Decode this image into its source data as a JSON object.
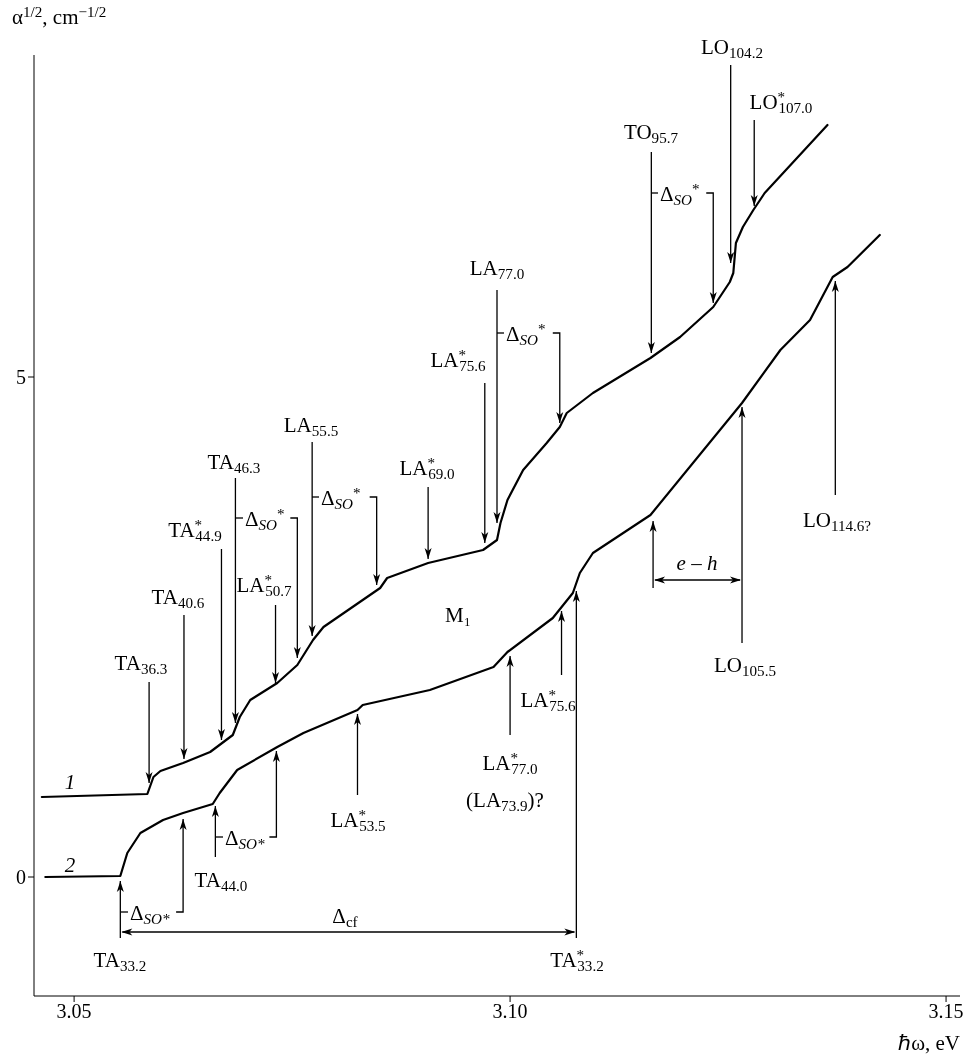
{
  "chart_data": {
    "type": "line",
    "xlabel": "ℏω, eV",
    "ylabel": "α$^{1/2}$, cm$^{−1/2}$",
    "xlim": [
      3.0454,
      3.1516
    ],
    "ylim": [
      -1.19,
      8.22
    ],
    "xticks": [
      3.05,
      {
        "value": 3.1,
        "label": "3.10"
      },
      3.15
    ],
    "yticks": [
      0,
      5
    ],
    "grid": false,
    "line_style": "solid",
    "series": [
      {
        "name": "1",
        "color": "#000000",
        "x": [
          3.0463,
          3.0584,
          3.0591,
          3.0599,
          3.0625,
          3.0656,
          3.0682,
          3.069,
          3.0702,
          3.0733,
          3.0756,
          3.0774,
          3.0786,
          3.0831,
          3.0851,
          3.0859,
          3.0906,
          3.0969,
          3.0985,
          3.0989,
          3.0997,
          3.1015,
          3.1042,
          3.1057,
          3.1065,
          3.1095,
          3.1161,
          3.1195,
          3.1233,
          3.1252,
          3.1256,
          3.1259,
          3.1267,
          3.1279,
          3.1292,
          3.1364
        ],
        "values": [
          0.8,
          0.83,
          1.0,
          1.06,
          1.14,
          1.25,
          1.42,
          1.6,
          1.77,
          1.94,
          2.12,
          2.37,
          2.5,
          2.77,
          2.89,
          2.99,
          3.14,
          3.27,
          3.37,
          3.54,
          3.77,
          4.07,
          4.34,
          4.5,
          4.64,
          4.84,
          5.19,
          5.4,
          5.7,
          5.95,
          6.04,
          6.34,
          6.5,
          6.67,
          6.84,
          7.52
        ]
      },
      {
        "name": "2",
        "color": "#000000",
        "x": [
          3.0467,
          3.0553,
          3.0561,
          3.0576,
          3.0602,
          3.0625,
          3.0659,
          3.0667,
          3.0687,
          3.0733,
          3.0763,
          3.0825,
          3.0831,
          3.0908,
          3.0981,
          3.0997,
          3.1049,
          3.1072,
          3.108,
          3.1095,
          3.1161,
          3.1266,
          3.131,
          3.1344,
          3.137,
          3.1387,
          3.1424
        ],
        "values": [
          0.0,
          0.01,
          0.24,
          0.44,
          0.57,
          0.64,
          0.73,
          0.84,
          1.07,
          1.3,
          1.44,
          1.67,
          1.72,
          1.87,
          2.1,
          2.25,
          2.59,
          2.84,
          3.04,
          3.24,
          3.62,
          4.74,
          5.27,
          5.57,
          6.0,
          6.1,
          6.42
        ]
      }
    ],
    "annotations": [
      {
        "text": "TA$_{36.3}$",
        "x": 3.0586,
        "y": 0.9
      },
      {
        "text": "TA$_{40.6}$",
        "x": 3.0626,
        "y": 1.14
      },
      {
        "text": "TA$^{*}$$_{44.9}$",
        "x": 3.0669,
        "y": 1.33
      },
      {
        "text": "TA$_{46.3}$",
        "x": 3.0685,
        "y": 1.5
      },
      {
        "text": "Δ$_{SO}$$^{*}$",
        "x": 3.0756,
        "y": 2.15
      },
      {
        "text": "LA$^{*}$$_{50.7}$",
        "x": 3.0731,
        "y": 1.9
      },
      {
        "text": "LA$_{55.5}$",
        "x": 3.0773,
        "y": 2.37
      },
      {
        "text": "Δ$_{SO}$$^{*}$",
        "x": 3.0847,
        "y": 2.88
      },
      {
        "text": "LA$^{*}$$_{69.0}$",
        "x": 3.0906,
        "y": 3.14
      },
      {
        "text": "LA$^{*}$$_{75.6}$",
        "x": 3.0971,
        "y": 3.3
      },
      {
        "text": "LA$_{77.0}$",
        "x": 3.0985,
        "y": 3.5
      },
      {
        "text": "Δ$_{SO}$$^{*}$",
        "x": 3.1057,
        "y": 4.5
      },
      {
        "text": "TO$_{95.7}$",
        "x": 3.1162,
        "y": 5.2
      },
      {
        "text": "Δ$_{SO}$$^{*}$",
        "x": 3.1233,
        "y": 5.7
      },
      {
        "text": "LO$_{104.2}$",
        "x": 3.1253,
        "y": 6.1
      },
      {
        "text": "LO$^{*}$$_{107.0}$",
        "x": 3.128,
        "y": 6.67
      },
      {
        "text": "LO$_{114.6?}$",
        "x": 3.1373,
        "y": 6.0
      },
      {
        "text": "LO$_{105.5}$",
        "x": 3.1266,
        "y": 4.74
      },
      {
        "text": "e – h",
        "x": 3.1164,
        "y": 3.6
      },
      {
        "text": "LA$^{*}$$_{75.6}$",
        "x": 3.1059,
        "y": 2.7
      },
      {
        "text": "LA$^{*}$$_{77.0}$",
        "x": 3.1,
        "y": 2.25
      },
      "(LA$_{73.9}$)?",
      {
        "text": "TA$^{*}$$_{33.2}$",
        "x": 3.1076,
        "y": 2.9
      },
      {
        "text": "TA$_{33.2}$",
        "x": 3.0553,
        "y": 0
      },
      "Δ$_{cf}$",
      {
        "text": "Δ$_{SO*}$",
        "x": 3.0625,
        "y": 0.62
      },
      {
        "text": "TA$_{44.0}$",
        "x": 3.0662,
        "y": 0.75
      },
      {
        "text": "Δ$_{SO*}$",
        "x": 3.0732,
        "y": 1.3
      },
      {
        "text": "LA$^{*}$$_{53.5}$",
        "x": 3.0825,
        "y": 1.67
      },
      "M₁"
    ]
  }
}
